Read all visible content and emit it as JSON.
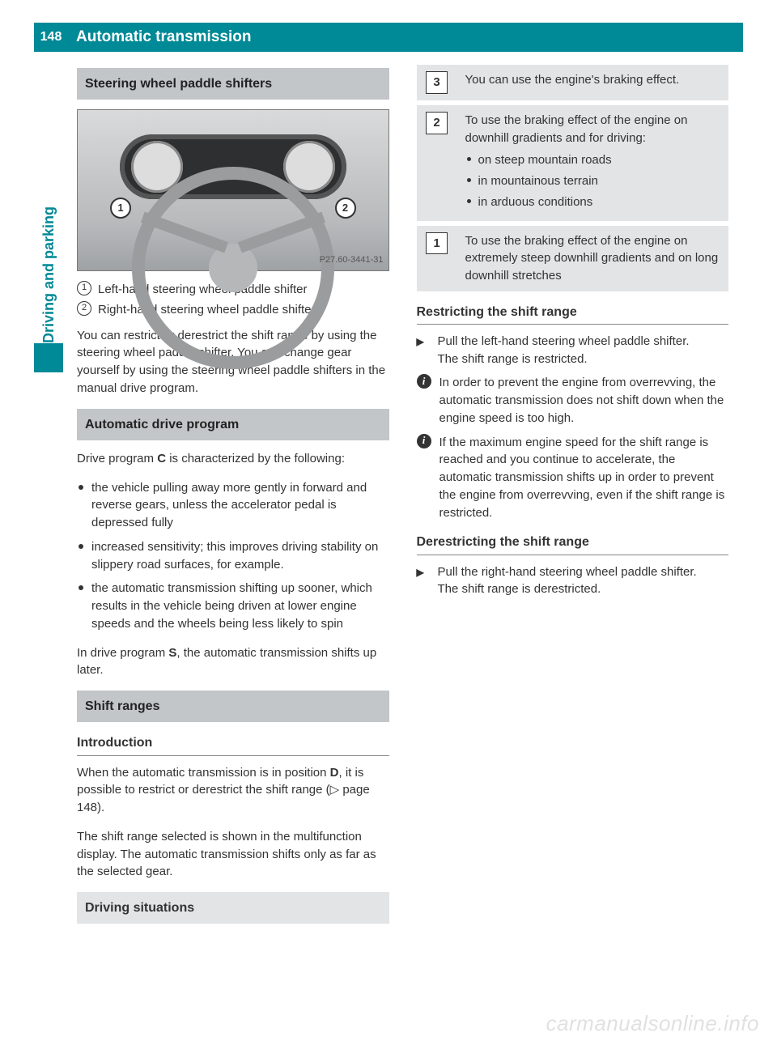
{
  "page": {
    "number": "148",
    "title": "Automatic transmission",
    "side_tab": "Driving and parking"
  },
  "watermark": "carmanualsonline.info",
  "fig": {
    "label": "P27.60-3441-31",
    "c1": "1",
    "c2": "2"
  },
  "sec1": {
    "title": "Steering wheel paddle shifters",
    "legend1_num": "1",
    "legend1": "Left-hand steering wheel paddle shifter",
    "legend2_num": "2",
    "legend2": "Right-hand steering wheel paddle shifter",
    "p1": "You can restrict or derestrict the shift range by using the steering wheel paddle shifter. You can change gear yourself by using the steering wheel paddle shifters in the manual drive program."
  },
  "sec2": {
    "title": "Automatic drive program",
    "p1a": "Drive program ",
    "p1b": "C",
    "p1c": " is characterized by the following:",
    "b1": "the vehicle pulling away more gently in forward and reverse gears, unless the accelerator pedal is depressed fully",
    "b2": "increased sensitivity; this improves driving stability on slippery road surfaces, for example.",
    "b3": "the automatic transmission shifting up sooner, which results in the vehicle being driven at lower engine speeds and the wheels being less likely to spin",
    "p2a": "In drive program ",
    "p2b": "S",
    "p2c": ", the automatic transmission shifts up later."
  },
  "sec3": {
    "title": "Shift ranges",
    "intro_head": "Introduction",
    "intro_p_a": "When the automatic transmission is in position ",
    "intro_p_b": "D",
    "intro_p_c": ", it is possible to restrict or derestrict the shift range (▷ page 148).",
    "col2_p": "The shift range selected is shown in the multifunction display. The automatic transmission shifts only as far as the selected gear.",
    "situations_head": "Driving situations",
    "g3_num": "3",
    "g3": "You can use the engine's braking effect.",
    "g2_num": "2",
    "g2_intro": "To use the braking effect of the engine on downhill gradients and for driving:",
    "g2_s1": "on steep mountain roads",
    "g2_s2": "in mountainous terrain",
    "g2_s3": "in arduous conditions",
    "g1_num": "1",
    "g1": "To use the braking effect of the engine on extremely steep downhill gradients and on long downhill stretches",
    "restrict_head": "Restricting the shift range",
    "restrict_step": "Pull the left-hand steering wheel paddle shifter.",
    "restrict_result": "The shift range is restricted.",
    "info1": "In order to prevent the engine from overrevving, the automatic transmission does not shift down when the engine speed is too high.",
    "info2": "If the maximum engine speed for the shift range is reached and you continue to accelerate, the automatic transmission shifts up in order to prevent the engine from overrevving, even if the shift range is restricted.",
    "derestrict_head": "Derestricting the shift range",
    "derestrict_step": "Pull the right-hand steering wheel paddle shifter.",
    "derestrict_result": "The shift range is derestricted."
  }
}
